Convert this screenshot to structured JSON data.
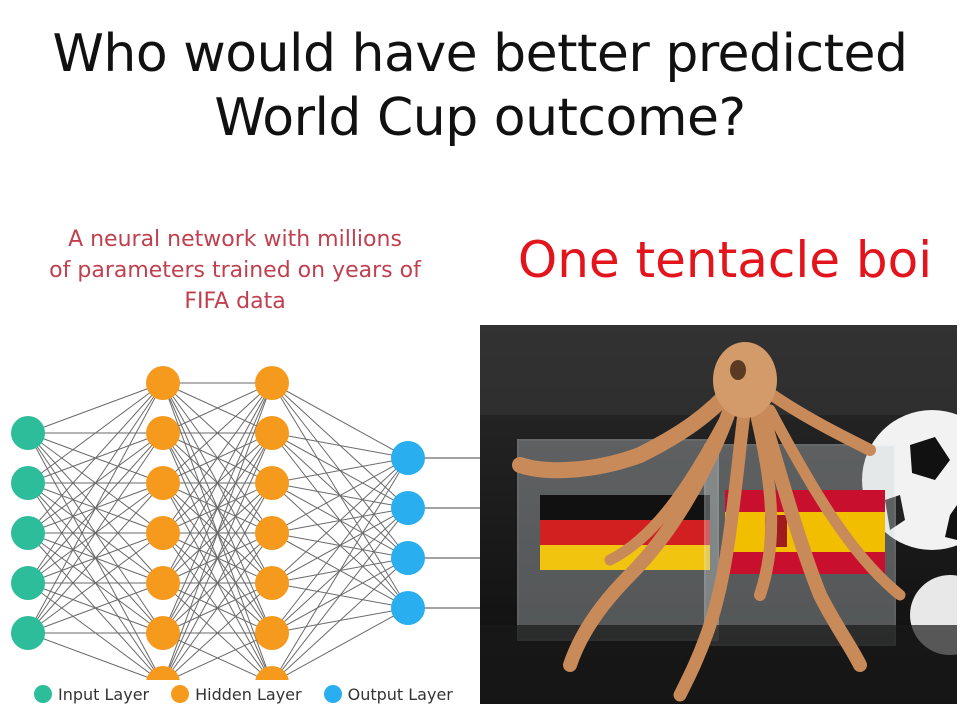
{
  "title": {
    "line1": "Who would have better predicted",
    "line2": "World Cup outcome?"
  },
  "neural_network": {
    "caption_lines": [
      "A neural network with millions",
      "of parameters trained on years of",
      "FIFA data"
    ],
    "layers": [
      {
        "type": "input",
        "nodes": 5
      },
      {
        "type": "hidden",
        "nodes": 7
      },
      {
        "type": "hidden",
        "nodes": 7
      },
      {
        "type": "output",
        "nodes": 4
      }
    ],
    "colors": {
      "input": "#2dbd9a",
      "hidden": "#f59a1c",
      "output": "#29aef0",
      "edge": "#6a6a6a"
    },
    "legend": [
      {
        "label": "Input Layer",
        "color": "#2dbd9a"
      },
      {
        "label": "Hidden Layer",
        "color": "#f59a1c"
      },
      {
        "label": "Output Layer",
        "color": "#29aef0"
      }
    ]
  },
  "octopus": {
    "label": "One tentacle boi",
    "photo_subject": "octopus-on-flag-boxes",
    "flag_colors": {
      "germany": [
        "#111111",
        "#d21f1f",
        "#f1c40f"
      ],
      "spain": [
        "#c8102e",
        "#f1bf00",
        "#c8102e"
      ]
    }
  }
}
